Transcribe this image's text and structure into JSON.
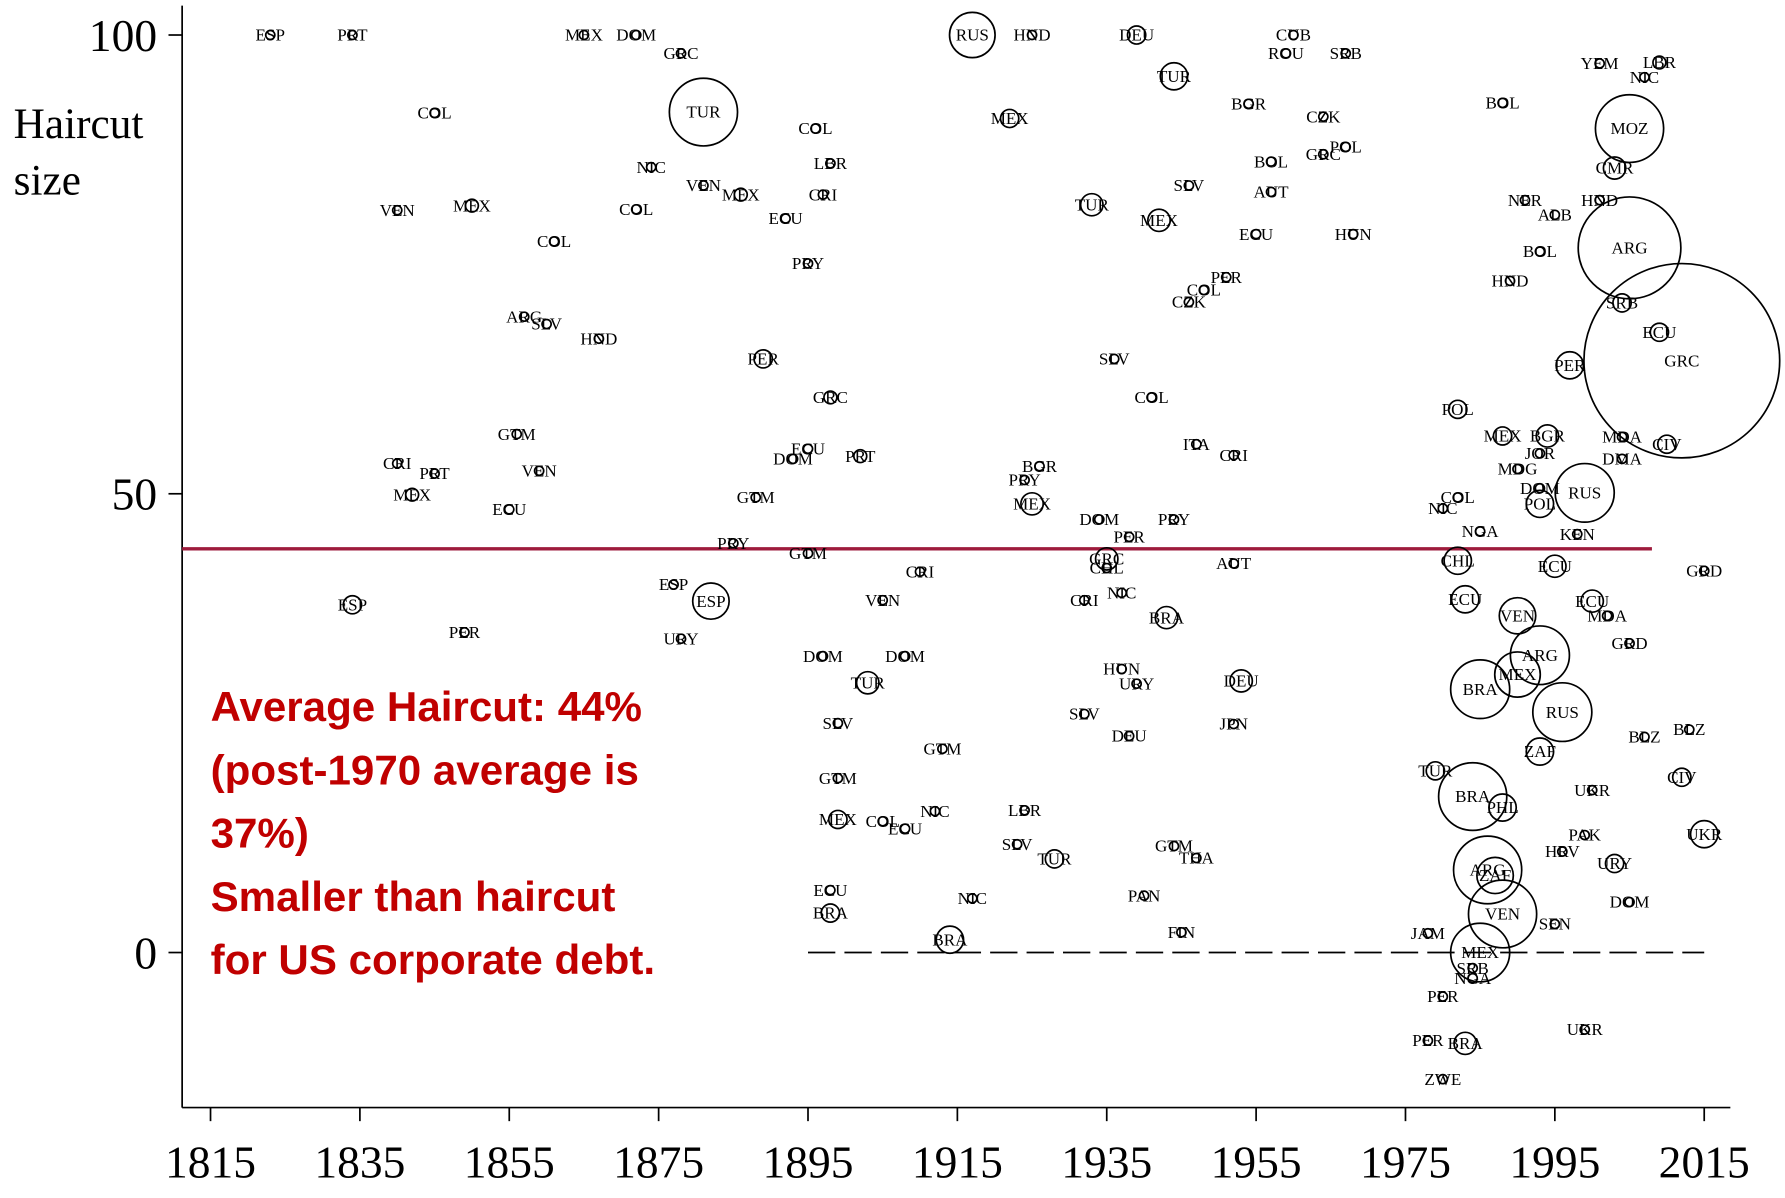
{
  "chart_data": {
    "type": "scatter",
    "ylabel": [
      "Haircut",
      "size"
    ],
    "annotation": [
      "Average Haircut: 44%",
      "(post-1970 average is",
      "37%)",
      "Smaller than haircut",
      "for US corporate debt."
    ],
    "xlim": [
      1811.2,
      2018.5
    ],
    "ylim": [
      -16.9,
      103.2
    ],
    "xticks": [
      1815,
      1835,
      1855,
      1875,
      1895,
      1915,
      1935,
      1955,
      1975,
      1995,
      2015
    ],
    "yticks": [
      0,
      50,
      100
    ],
    "reference_line": {
      "y": 44,
      "x_range": [
        1811.2,
        2008
      ],
      "color": "#9e1b3c"
    },
    "zero_line": {
      "y": 0,
      "x_range": [
        1895,
        2015
      ],
      "color": "#000000"
    },
    "color": "#000000",
    "labels": [
      "ESP",
      "PRT",
      "MEX",
      "DOM",
      "GRC",
      "RUS",
      "HND",
      "DEU",
      "CUB",
      "ROU",
      "SRB",
      "TUR",
      "COL",
      "TUR",
      "MEX",
      "COL",
      "BGR",
      "CZK",
      "POL",
      "GRC",
      "BOL",
      "NIC",
      "LBR",
      "VEN",
      "MEX",
      "CRI",
      "SLV",
      "AUT",
      "VEN",
      "MEX",
      "COL",
      "ECU",
      "TUR",
      "MEX",
      "ECU",
      "HUN",
      "COL",
      "PRY",
      "PER",
      "COL",
      "CZK",
      "ARG",
      "SLV",
      "HND",
      "PER",
      "SLV",
      "GRC",
      "COL",
      "GTM",
      "ITA",
      "CRI",
      "ECU",
      "DOM",
      "PRT",
      "BGR",
      "PRY",
      "MEX",
      "CRI",
      "PRT",
      "VEN",
      "MEX",
      "ECU",
      "GTM",
      "DOM",
      "PER",
      "PRY",
      "PRY",
      "GTM",
      "AUT",
      "GRC",
      "CHL",
      "CRI",
      "ESP",
      "ESP",
      "ESP",
      "VEN",
      "CRI",
      "NIC",
      "BRA",
      "PER",
      "URY",
      "DOM",
      "DOM",
      "HUN",
      "URY",
      "TUR",
      "DEU",
      "SLV",
      "SLV",
      "JPN",
      "DEU",
      "GTM",
      "GTM",
      "MEX",
      "COL",
      "ECU",
      "NIC",
      "LBR",
      "SLV",
      "TUR",
      "GTM",
      "THA",
      "ECU",
      "BRA",
      "NIC",
      "PAN",
      "FIN",
      "BRA",
      "YEM",
      "LBR",
      "NIC",
      "BOL",
      "MOZ",
      "CMR",
      "ARG",
      "NER",
      "HND",
      "ALB",
      "BOL",
      "HND",
      "SRB",
      "ECU",
      "GRC",
      "PER",
      "POL",
      "MEX",
      "BGR",
      "MDA",
      "CIV",
      "JOR",
      "DMA",
      "RUS",
      "POL",
      "NIC",
      "KEN",
      "ECU",
      "GRD",
      "ECU",
      "MDA",
      "GRD",
      "BLZ",
      "BLZ",
      "CIV",
      "UKR",
      "UKR",
      "URY",
      "DOM",
      "PAK",
      "HRV",
      "SEN",
      "UKR",
      "PER",
      "PER",
      "BRA",
      "ZWE",
      "VEN",
      "MEX",
      "BRA",
      "ARG",
      "ZAF",
      "TUR",
      "JAM",
      "NGA",
      "SRB",
      "RUS",
      "CHL",
      "VEN",
      "MEX",
      "BRA",
      "ARG",
      "ZAF",
      "PHL",
      "NGA",
      "ECU",
      "COL",
      "DOM",
      "MDG"
    ],
    "x": [
      1823,
      1834,
      1865,
      1872,
      1878,
      1917,
      1925,
      1939,
      1960,
      1959,
      1967,
      1944,
      1845,
      1881,
      1922,
      1896,
      1954,
      1964,
      1967,
      1964,
      1957,
      1874,
      1898,
      1881,
      1886,
      1897,
      1946,
      1957,
      1840,
      1850,
      1872,
      1892,
      1933,
      1942,
      1955,
      1968,
      1861,
      1895,
      1951,
      1948,
      1946,
      1857,
      1860,
      1867,
      1889,
      1936,
      1898,
      1941,
      1856,
      1947,
      1952,
      1895,
      1893,
      1902,
      1926,
      1924,
      1925,
      1840,
      1845,
      1859,
      1842,
      1855,
      1888,
      1934,
      1938,
      1944,
      1885,
      1895,
      1952,
      1935,
      1935,
      1910,
      1877,
      1882,
      1834,
      1905,
      1932,
      1937,
      1943,
      1849,
      1878,
      1897,
      1908,
      1937,
      1939,
      1903,
      1953,
      1899,
      1932,
      1952,
      1938,
      1913,
      1899,
      1899,
      1905,
      1908,
      1912,
      1924,
      1923,
      1928,
      1944,
      1947,
      1898,
      1898,
      1917,
      1940,
      1945,
      1914,
      2001,
      2009,
      2007,
      1988,
      2005,
      2003,
      2005,
      1991,
      2001,
      1995,
      1993,
      1989,
      2004,
      2009,
      2012,
      1997,
      1982,
      1988,
      1994,
      2004,
      2010,
      1993,
      2004,
      1999,
      1993,
      1980,
      1998,
      1995,
      2015,
      2000,
      2002,
      2005,
      2007,
      2013,
      2012,
      2015,
      2000,
      2003,
      2005,
      1999,
      1996,
      1995,
      1999,
      1980,
      1978,
      1983,
      1980,
      1988,
      1985,
      1984,
      1993,
      1993,
      1979,
      1978,
      1984,
      1984,
      1996,
      1982,
      1990,
      1990,
      1985,
      1986,
      1987,
      1988,
      1985,
      1983,
      1982,
      1993,
      1990
    ],
    "values": [
      100,
      100,
      100,
      100,
      98,
      100,
      100,
      100,
      100,
      98,
      98,
      95.5,
      91.5,
      91.6,
      90.9,
      89.8,
      92.5,
      91.1,
      87.8,
      87,
      86.2,
      85.6,
      86,
      83.6,
      82.6,
      82.6,
      83.6,
      82.9,
      80.9,
      81.4,
      81,
      80,
      81.5,
      79.8,
      78.3,
      78.3,
      77.5,
      75.1,
      73.6,
      72.2,
      70.9,
      69.3,
      68.5,
      66.9,
      64.7,
      64.7,
      60.5,
      60.5,
      56.5,
      55.4,
      54.2,
      54.9,
      53.8,
      54.1,
      53,
      51.5,
      48.9,
      53.3,
      52.2,
      52.5,
      49.9,
      48.3,
      49.6,
      47.2,
      45.3,
      47.2,
      44.6,
      43.5,
      42.4,
      42.9,
      41.9,
      41.5,
      40.1,
      38.3,
      37.9,
      38.4,
      38.4,
      39.2,
      36.5,
      34.9,
      34.2,
      32.3,
      32.3,
      30.9,
      29.3,
      29.4,
      29.6,
      25,
      26,
      24.9,
      23.6,
      22.2,
      19,
      14.5,
      14.3,
      13.5,
      15.4,
      15.5,
      11.8,
      10.2,
      11.6,
      10.3,
      6.8,
      4.3,
      5.9,
      6.2,
      2.2,
      1.4,
      96.9,
      97,
      95.4,
      92.6,
      89.8,
      85.5,
      76.8,
      82,
      82,
      80.4,
      76.4,
      73.2,
      70.8,
      67.6,
      64.5,
      64,
      59.2,
      56.3,
      56.3,
      56.2,
      55.4,
      54.4,
      53.8,
      50.1,
      48.9,
      48.4,
      45.6,
      42.1,
      41.6,
      38.3,
      36.7,
      33.7,
      23.5,
      24.3,
      19.1,
      12.9,
      17.7,
      9.7,
      5.5,
      12.8,
      11,
      3.1,
      -8.4,
      -4.8,
      -9.6,
      -9.9,
      -13.8,
      4.2,
      0,
      17,
      32.4,
      21.9,
      19.8,
      2.1,
      -2.8,
      -1.7,
      26.2,
      42.7,
      36.7,
      30.3,
      28.7,
      9,
      8.4,
      15.8,
      45.9,
      38.5,
      49.6,
      50.6,
      52.7
    ],
    "sizes": [
      1,
      1,
      1,
      1,
      1,
      25,
      1,
      4,
      1,
      1,
      1,
      9,
      1,
      56,
      4,
      1,
      1,
      1,
      1,
      1,
      1,
      1,
      1,
      1,
      2,
      1,
      1,
      1,
      1,
      2,
      1,
      1,
      6,
      6,
      1,
      1,
      1,
      1,
      1,
      1,
      1,
      1,
      1,
      1,
      4,
      1,
      2,
      1,
      1,
      1,
      1,
      1,
      1,
      2,
      1,
      1,
      6,
      1,
      1,
      1,
      2,
      1,
      1,
      1,
      1,
      1,
      1,
      1,
      1,
      6,
      1,
      1,
      1,
      16,
      4,
      1,
      1,
      1,
      6,
      1,
      1,
      1,
      1,
      1,
      1,
      6,
      6,
      1,
      1,
      1,
      1,
      1,
      1,
      4,
      1,
      1,
      1,
      1,
      1,
      4,
      1,
      1,
      1,
      4,
      1,
      1,
      1,
      9,
      1,
      2,
      1,
      1,
      56,
      6,
      127,
      1,
      1,
      1,
      1,
      1,
      4,
      4,
      462,
      9,
      4,
      4,
      6,
      1,
      4,
      1,
      1,
      42,
      9,
      1,
      1,
      6,
      1,
      6,
      1,
      1,
      1,
      1,
      4,
      9,
      1,
      4,
      1,
      1,
      1,
      1,
      1,
      1,
      1,
      6,
      1,
      56,
      42,
      56,
      42,
      9,
      4,
      1,
      1,
      1,
      42,
      9,
      16,
      25,
      42,
      56,
      16,
      9,
      1,
      9,
      1,
      1,
      1
    ]
  }
}
